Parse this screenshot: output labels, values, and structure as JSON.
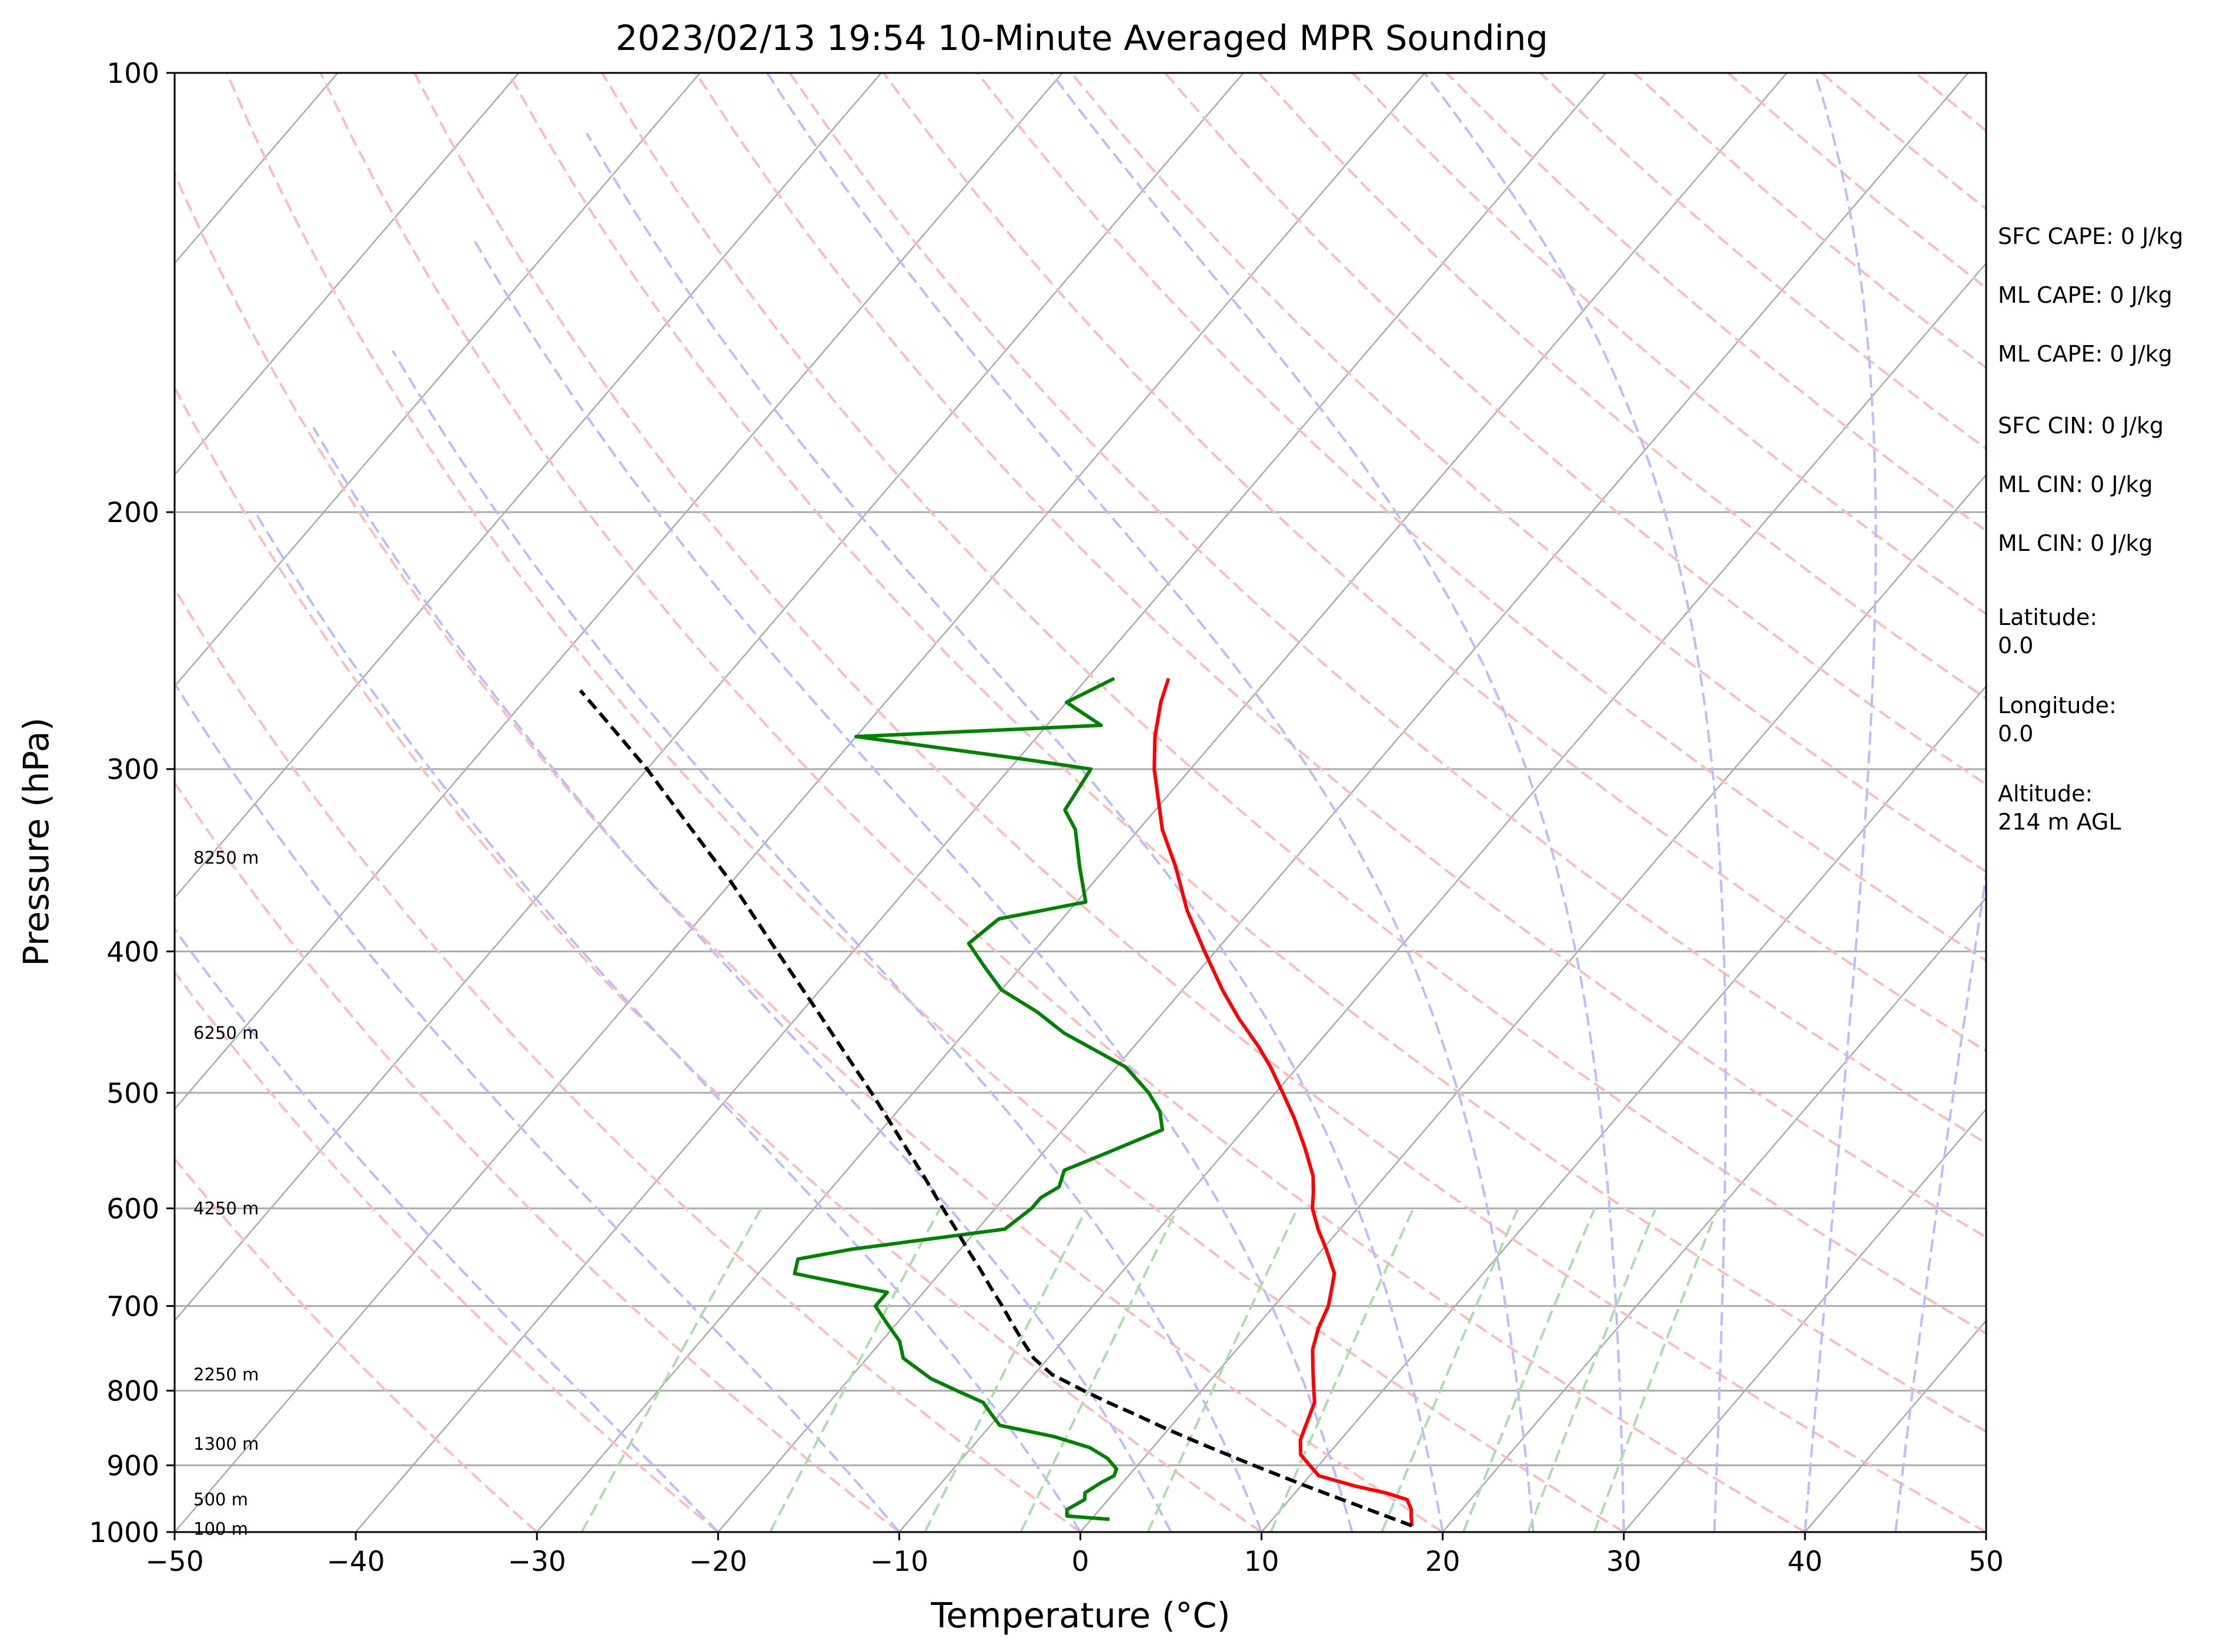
{
  "chart_data": {
    "type": "line",
    "title": "2023/02/13 19:54 10-Minute Averaged MPR Sounding",
    "xlabel": "Temperature (°C)",
    "ylabel": "Pressure (hPa)",
    "xlim": [
      -50,
      50
    ],
    "ylim": [
      1000,
      100
    ],
    "y_scale": "log",
    "skew": "skew-T",
    "grid": true,
    "x_ticks": [
      -50,
      -40,
      -30,
      -20,
      -10,
      0,
      10,
      20,
      30,
      40,
      50
    ],
    "x_tick_labels": [
      "−50",
      "−40",
      "−30",
      "−20",
      "−10",
      "0",
      "10",
      "20",
      "30",
      "40",
      "50"
    ],
    "y_ticks": [
      100,
      200,
      300,
      400,
      500,
      600,
      700,
      800,
      900,
      1000
    ],
    "y_tick_labels": [
      "100",
      "200",
      "300",
      "400",
      "500",
      "600",
      "700",
      "800",
      "900",
      "1000"
    ],
    "series": [
      {
        "kind": "temperature",
        "color": "#ff0000",
        "p": [
          990,
          975,
          965,
          950,
          940,
          930,
          915,
          900,
          885,
          865,
          850,
          830,
          815,
          800,
          775,
          750,
          725,
          700,
          685,
          665,
          640,
          620,
          600,
          585,
          570,
          545,
          520,
          500,
          480,
          465,
          445,
          425,
          400,
          375,
          350,
          330,
          300,
          285,
          270,
          260
        ],
        "t": [
          18.0,
          17.5,
          17.2,
          16.5,
          15.0,
          13.0,
          10.5,
          9.5,
          8.5,
          7.8,
          7.5,
          7.1,
          6.8,
          6.2,
          5.2,
          4.2,
          3.5,
          3.0,
          2.5,
          1.8,
          0.2,
          -1.2,
          -2.5,
          -3.2,
          -4.0,
          -5.8,
          -7.8,
          -9.6,
          -11.5,
          -13.1,
          -15.5,
          -17.8,
          -20.6,
          -23.5,
          -26.2,
          -28.7,
          -32.0,
          -33.5,
          -34.8,
          -35.5
        ]
      },
      {
        "kind": "dewpoint",
        "color": "#008000",
        "p": [
          980,
          975,
          965,
          950,
          940,
          925,
          915,
          905,
          890,
          875,
          860,
          845,
          830,
          815,
          800,
          785,
          760,
          740,
          720,
          700,
          685,
          680,
          665,
          650,
          640,
          620,
          600,
          590,
          580,
          565,
          550,
          530,
          515,
          500,
          480,
          455,
          440,
          425,
          410,
          395,
          380,
          370,
          350,
          330,
          320,
          300,
          295,
          285,
          280,
          270,
          260
        ],
        "td": [
          1.0,
          -1.5,
          -1.8,
          -1.3,
          -1.6,
          -1.2,
          -0.8,
          -1.0,
          -2.0,
          -3.5,
          -6.0,
          -9.5,
          -10.5,
          -11.5,
          -13.5,
          -15.5,
          -18.0,
          -19.0,
          -20.5,
          -22.0,
          -22.0,
          -23.5,
          -28.0,
          -28.5,
          -26.0,
          -18.5,
          -18.0,
          -18.0,
          -17.5,
          -18.0,
          -16.5,
          -14.5,
          -15.5,
          -17.0,
          -19.5,
          -24.5,
          -27.0,
          -30.0,
          -32.0,
          -34.0,
          -33.5,
          -29.5,
          -31.5,
          -33.5,
          -35.0,
          -35.5,
          -40.0,
          -50.0,
          -37.0,
          -40.0,
          -38.5
        ]
      },
      {
        "kind": "parcel",
        "color": "#000000",
        "p": [
          990,
          960,
          930,
          900,
          870,
          850,
          830,
          815,
          800,
          780,
          760,
          740,
          720,
          700,
          680,
          660,
          640,
          620,
          600,
          570,
          540,
          500,
          470,
          440,
          400,
          360,
          320,
          300,
          280,
          265
        ],
        "t": [
          18.0,
          14.2,
          10.3,
          6.4,
          2.5,
          -0.1,
          -2.6,
          -4.6,
          -6.5,
          -9.0,
          -10.8,
          -12.2,
          -13.6,
          -15.0,
          -16.5,
          -18.0,
          -19.6,
          -21.2,
          -22.9,
          -25.5,
          -28.3,
          -32.3,
          -35.6,
          -39.1,
          -44.2,
          -49.8,
          -56.4,
          -60.0,
          -64.1,
          -67.4
        ]
      }
    ],
    "height_labels": [
      {
        "p": 995,
        "label": "100 m"
      },
      {
        "p": 950,
        "label": "500 m"
      },
      {
        "p": 870,
        "label": "1300 m"
      },
      {
        "p": 780,
        "label": "2250 m"
      },
      {
        "p": 600,
        "label": "4250 m"
      },
      {
        "p": 455,
        "label": "6250 m"
      },
      {
        "p": 345,
        "label": "8250 m"
      }
    ],
    "background_lines": {
      "isotherm_color": "#aaaaaa",
      "dry_adiabat_color": "#ffbbbb",
      "moist_adiabat_color": "#bbbbff",
      "mixing_ratio_color": "#aaddaa"
    },
    "annotations": [
      {
        "lines": [
          "SFC CAPE: 0 J/kg"
        ]
      },
      {
        "lines": [
          "ML CAPE: 0 J/kg"
        ]
      },
      {
        "lines": [
          "ML CAPE: 0 J/kg"
        ]
      },
      {
        "lines": [
          "SFC CIN: 0 J/kg"
        ]
      },
      {
        "lines": [
          "ML CIN: 0 J/kg"
        ]
      },
      {
        "lines": [
          "ML CIN: 0 J/kg"
        ]
      },
      {
        "lines": [
          "Latitude:",
          "0.0"
        ]
      },
      {
        "lines": [
          "Longitude:",
          "0.0"
        ]
      },
      {
        "lines": [
          "Altitude:",
          "214 m AGL"
        ]
      }
    ]
  }
}
